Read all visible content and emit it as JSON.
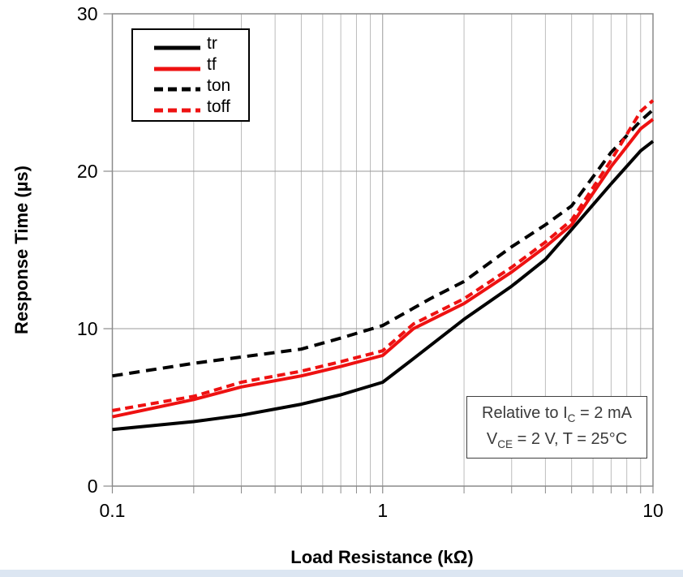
{
  "colors": {
    "series_black": "#000000",
    "series_red": "#ee1111",
    "grid_minor": "#bcbcbc",
    "grid_major": "#9a9a9a",
    "frame": "#8a8a8a",
    "annotation_text": "#3a3a3a",
    "footer_strip": "#dce6f2"
  },
  "annotation": {
    "line1": {
      "pre": "Relative to I",
      "sub": "C",
      "post": " = 2 mA"
    },
    "line2": {
      "pre": "V",
      "sub": "CE",
      "post": " = 2 V, T = 25°C"
    }
  },
  "chart_data": {
    "type": "line",
    "title": "",
    "xlabel": "Load Resistance (kΩ)",
    "ylabel": "Response Time (µs)",
    "x_scale": "log",
    "xlim": [
      0.1,
      10
    ],
    "ylim": [
      0,
      30
    ],
    "x_ticks": [
      0.1,
      1,
      10
    ],
    "x_tick_labels": [
      "0.1",
      "1",
      "10"
    ],
    "x_minor_ticks": [
      0.2,
      0.3,
      0.4,
      0.5,
      0.6,
      0.7,
      0.8,
      0.9,
      2,
      3,
      4,
      5,
      6,
      7,
      8,
      9
    ],
    "y_ticks": [
      0,
      10,
      20,
      30
    ],
    "y_tick_labels": [
      "0",
      "10",
      "20",
      "30"
    ],
    "grid": "major-y, all-x, gray",
    "legend_position": "top-left",
    "series": [
      {
        "name": "tr",
        "color": "#000000",
        "style": "solid",
        "dash": null,
        "width": 4,
        "points": [
          [
            0.1,
            3.6
          ],
          [
            0.2,
            4.1
          ],
          [
            0.3,
            4.5
          ],
          [
            0.5,
            5.2
          ],
          [
            0.7,
            5.8
          ],
          [
            1,
            6.6
          ],
          [
            1.3,
            8.1
          ],
          [
            2,
            10.6
          ],
          [
            3,
            12.7
          ],
          [
            4,
            14.4
          ],
          [
            5,
            16.3
          ],
          [
            7,
            19.2
          ],
          [
            9,
            21.3
          ],
          [
            10,
            21.9
          ]
        ]
      },
      {
        "name": "tf",
        "color": "#ee1111",
        "style": "solid",
        "dash": null,
        "width": 4,
        "points": [
          [
            0.1,
            4.4
          ],
          [
            0.2,
            5.5
          ],
          [
            0.3,
            6.3
          ],
          [
            0.5,
            7.0
          ],
          [
            0.7,
            7.6
          ],
          [
            1,
            8.3
          ],
          [
            1.3,
            10.0
          ],
          [
            2,
            11.6
          ],
          [
            3,
            13.6
          ],
          [
            4,
            15.2
          ],
          [
            5,
            16.6
          ],
          [
            7,
            20.3
          ],
          [
            9,
            22.7
          ],
          [
            10,
            23.3
          ]
        ]
      },
      {
        "name": "ton",
        "color": "#000000",
        "style": "dashed",
        "dash": "13,8",
        "width": 4,
        "points": [
          [
            0.1,
            7.0
          ],
          [
            0.2,
            7.8
          ],
          [
            0.3,
            8.2
          ],
          [
            0.5,
            8.7
          ],
          [
            0.7,
            9.4
          ],
          [
            1,
            10.2
          ],
          [
            1.5,
            11.9
          ],
          [
            2,
            13.0
          ],
          [
            3,
            15.2
          ],
          [
            4,
            16.6
          ],
          [
            5,
            17.8
          ],
          [
            7,
            21.2
          ],
          [
            9,
            23.2
          ],
          [
            10,
            23.9
          ]
        ]
      },
      {
        "name": "toff",
        "color": "#ee1111",
        "style": "dashed",
        "dash": "10,6",
        "width": 4,
        "points": [
          [
            0.1,
            4.8
          ],
          [
            0.2,
            5.7
          ],
          [
            0.3,
            6.6
          ],
          [
            0.5,
            7.3
          ],
          [
            0.7,
            7.9
          ],
          [
            1,
            8.6
          ],
          [
            1.3,
            10.3
          ],
          [
            2,
            11.9
          ],
          [
            3,
            13.9
          ],
          [
            4,
            15.5
          ],
          [
            5,
            16.9
          ],
          [
            7,
            20.7
          ],
          [
            9,
            23.8
          ],
          [
            10,
            24.5
          ]
        ]
      }
    ]
  }
}
